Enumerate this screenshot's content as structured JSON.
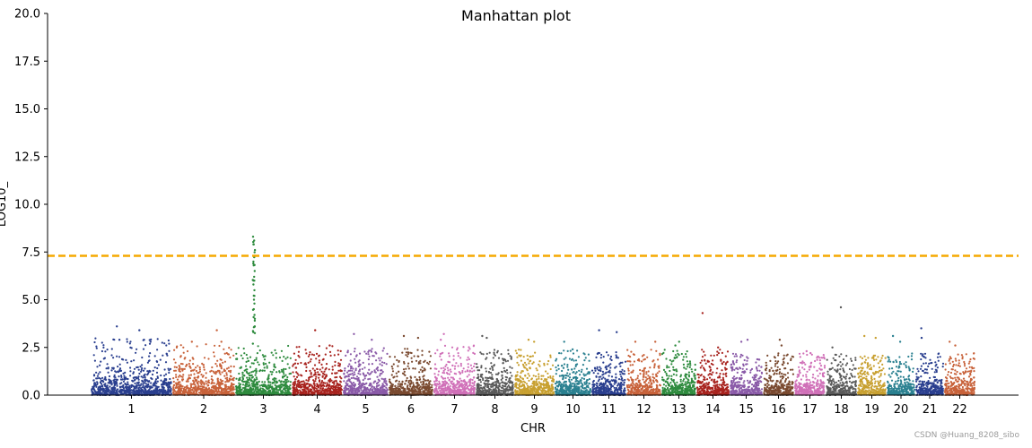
{
  "chart_data": {
    "type": "scatter",
    "title": "Manhattan plot",
    "xlabel": "CHR",
    "ylabel": "LOG10_",
    "ylim": [
      0,
      20
    ],
    "yticks": [
      "0.0",
      "2.5",
      "5.0",
      "7.5",
      "10.0",
      "12.5",
      "15.0",
      "17.5",
      "20.0"
    ],
    "threshold": {
      "value": 7.3,
      "color": "#f5a800",
      "style": "dashed"
    },
    "grid": false,
    "legend": "none",
    "series": [
      {
        "chr": "1",
        "color": "#2a3f8f",
        "max": 3.6,
        "density": 2.8,
        "peaks": [
          3.6,
          3.4,
          2.9,
          2.9,
          2.8
        ]
      },
      {
        "chr": "2",
        "color": "#c8623a",
        "max": 3.4,
        "density": 2.5,
        "peaks": [
          3.4,
          2.8,
          2.8
        ]
      },
      {
        "chr": "3",
        "color": "#2e8b3e",
        "max": 8.3,
        "density": 2.4,
        "peaks": [
          8.3,
          8.1,
          7.9,
          7.6,
          7.3,
          7.0,
          6.8,
          6.5,
          6.2,
          6.0,
          5.8,
          5.5,
          5.2,
          5.0,
          4.8,
          4.5,
          4.2,
          3.9,
          3.6,
          3.3
        ]
      },
      {
        "chr": "4",
        "color": "#a8231e",
        "max": 3.4,
        "density": 2.4,
        "peaks": [
          3.4,
          2.6
        ]
      },
      {
        "chr": "5",
        "color": "#8a5aa8",
        "max": 3.2,
        "density": 2.3,
        "peaks": [
          3.2,
          2.9
        ]
      },
      {
        "chr": "6",
        "color": "#7a4a30",
        "max": 3.1,
        "density": 2.3,
        "peaks": [
          3.1,
          3.0
        ]
      },
      {
        "chr": "7",
        "color": "#d070b8",
        "max": 3.2,
        "density": 2.4,
        "peaks": [
          3.2,
          2.9
        ]
      },
      {
        "chr": "8",
        "color": "#5a5a5a",
        "max": 3.1,
        "density": 2.2,
        "peaks": [
          3.1,
          3.0
        ]
      },
      {
        "chr": "9",
        "color": "#c8a030",
        "max": 2.9,
        "density": 2.2,
        "peaks": [
          2.9,
          2.8
        ]
      },
      {
        "chr": "10",
        "color": "#2a8090",
        "max": 2.8,
        "density": 2.2,
        "peaks": [
          2.8,
          2.4
        ]
      },
      {
        "chr": "11",
        "color": "#2a3f8f",
        "max": 3.4,
        "density": 2.2,
        "peaks": [
          3.4,
          3.3
        ]
      },
      {
        "chr": "12",
        "color": "#c8623a",
        "max": 2.8,
        "density": 2.2,
        "peaks": [
          2.8,
          2.8
        ]
      },
      {
        "chr": "13",
        "color": "#2e8b3e",
        "max": 2.8,
        "density": 2.2,
        "peaks": [
          2.8,
          2.6
        ]
      },
      {
        "chr": "14",
        "color": "#a8231e",
        "max": 4.3,
        "density": 2.2,
        "peaks": [
          4.3,
          2.5
        ]
      },
      {
        "chr": "15",
        "color": "#8a5aa8",
        "max": 2.9,
        "density": 2.0,
        "peaks": [
          2.9,
          2.8
        ]
      },
      {
        "chr": "16",
        "color": "#7a4a30",
        "max": 2.9,
        "density": 2.0,
        "peaks": [
          2.9,
          2.6
        ]
      },
      {
        "chr": "17",
        "color": "#d070b8",
        "max": 2.3,
        "density": 2.0,
        "peaks": [
          2.3,
          2.2
        ]
      },
      {
        "chr": "18",
        "color": "#5a5a5a",
        "max": 4.6,
        "density": 2.0,
        "peaks": [
          4.6,
          2.5
        ]
      },
      {
        "chr": "19",
        "color": "#c8a030",
        "max": 3.1,
        "density": 2.0,
        "peaks": [
          3.1,
          3.0
        ]
      },
      {
        "chr": "20",
        "color": "#2a8090",
        "max": 3.1,
        "density": 2.0,
        "peaks": [
          3.1,
          2.8
        ]
      },
      {
        "chr": "21",
        "color": "#2a3f8f",
        "max": 3.5,
        "density": 2.0,
        "peaks": [
          3.5,
          3.0
        ]
      },
      {
        "chr": "22",
        "color": "#c8623a",
        "max": 2.8,
        "density": 2.0,
        "peaks": [
          2.8,
          2.6
        ]
      }
    ]
  },
  "watermark": "CSDN @Huang_8208_sibo"
}
